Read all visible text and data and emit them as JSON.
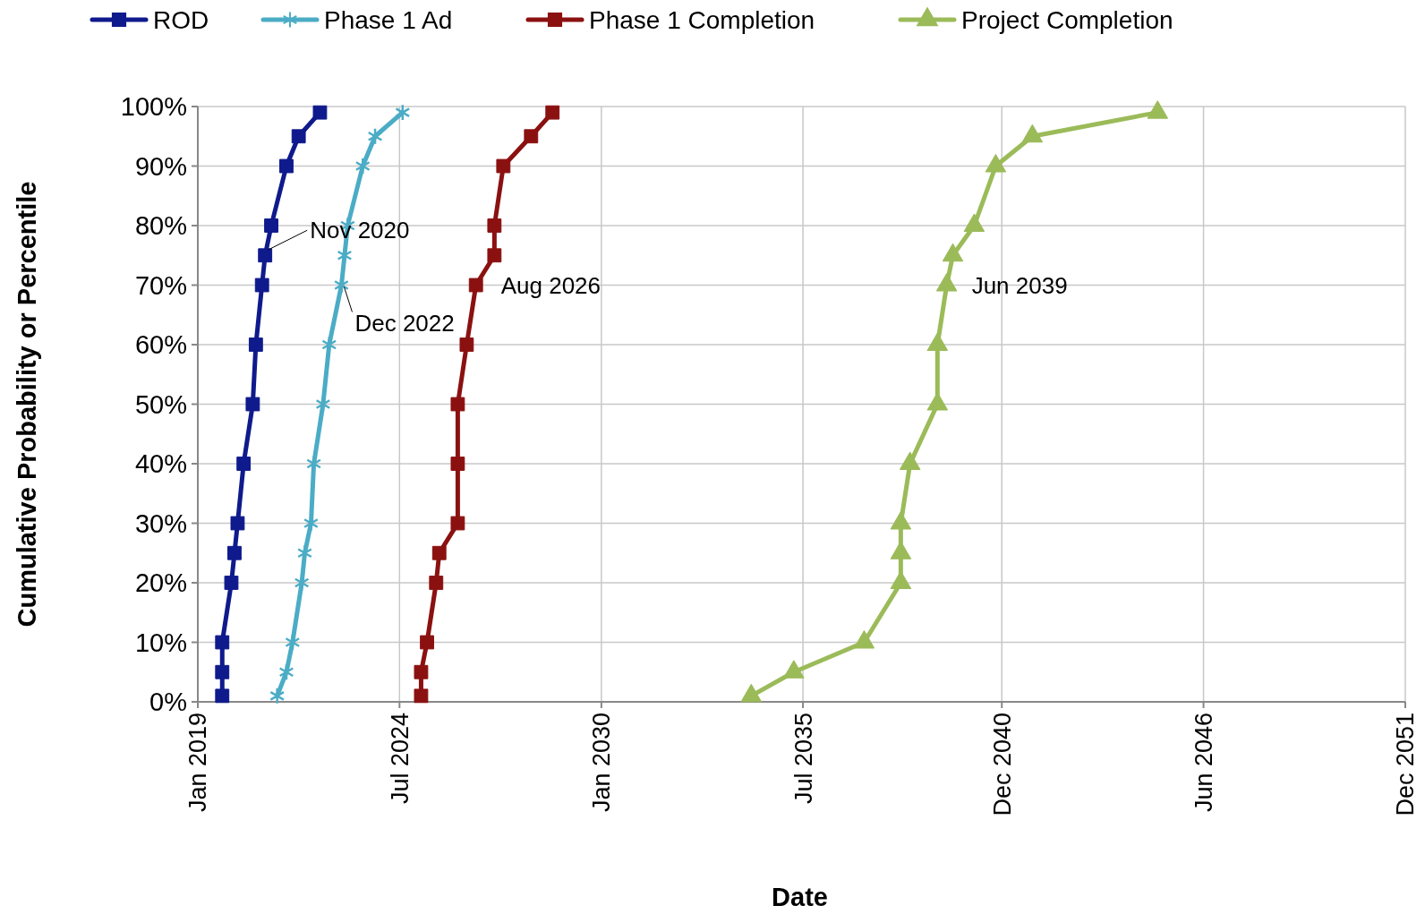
{
  "chart_data": {
    "type": "line",
    "xlabel": "Date",
    "ylabel": "Cumulative Probability or Percentile",
    "xlim": [
      "2019-01-01",
      "2051-12-01"
    ],
    "xticks": [
      {
        "value": "2019-01-01",
        "label": "Jan 2019"
      },
      {
        "value": "2024-07-01",
        "label": "Jul 2024"
      },
      {
        "value": "2030-01-01",
        "label": "Jan 2030"
      },
      {
        "value": "2035-07-01",
        "label": "Jul 2035"
      },
      {
        "value": "2040-12-01",
        "label": "Dec 2040"
      },
      {
        "value": "2046-06-01",
        "label": "Jun 2046"
      },
      {
        "value": "2051-12-01",
        "label": "Dec 2051"
      }
    ],
    "ylim": [
      0,
      100
    ],
    "yticks": [
      {
        "value": 0,
        "label": "0%"
      },
      {
        "value": 10,
        "label": "10%"
      },
      {
        "value": 20,
        "label": "20%"
      },
      {
        "value": 30,
        "label": "30%"
      },
      {
        "value": 40,
        "label": "40%"
      },
      {
        "value": 50,
        "label": "50%"
      },
      {
        "value": 60,
        "label": "60%"
      },
      {
        "value": 70,
        "label": "70%"
      },
      {
        "value": 80,
        "label": "80%"
      },
      {
        "value": 90,
        "label": "90%"
      },
      {
        "value": 100,
        "label": "100%"
      }
    ],
    "grid": true,
    "legend": "top",
    "series": [
      {
        "name": "ROD",
        "color": "#0f1a8c",
        "marker": "square",
        "x": [
          "2019-09",
          "2019-09",
          "2019-09",
          "2019-12",
          "2020-01",
          "2020-02",
          "2020-04",
          "2020-07",
          "2020-08",
          "2020-10",
          "2020-11",
          "2021-01",
          "2021-06",
          "2021-10",
          "2022-05"
        ],
        "values": [
          1,
          5,
          10,
          20,
          25,
          30,
          40,
          50,
          60,
          70,
          75,
          80,
          90,
          95,
          99
        ]
      },
      {
        "name": "Phase 1 Ad",
        "color": "#4bacc6",
        "marker": "cross",
        "x": [
          "2021-03",
          "2021-06",
          "2021-08",
          "2021-11",
          "2021-12",
          "2022-02",
          "2022-03",
          "2022-06",
          "2022-08",
          "2022-12",
          "2023-01",
          "2023-02",
          "2023-07",
          "2023-11",
          "2024-08"
        ],
        "values": [
          1,
          5,
          10,
          20,
          25,
          30,
          40,
          50,
          60,
          70,
          75,
          80,
          90,
          95,
          99
        ]
      },
      {
        "name": "Phase 1 Completion",
        "color": "#8b1111",
        "marker": "square",
        "x": [
          "2025-02",
          "2025-02",
          "2025-04",
          "2025-07",
          "2025-08",
          "2026-02",
          "2026-02",
          "2026-02",
          "2026-05",
          "2026-08",
          "2027-02",
          "2027-02",
          "2027-05",
          "2028-02",
          "2028-09"
        ],
        "values": [
          1,
          5,
          10,
          20,
          25,
          30,
          40,
          50,
          60,
          70,
          75,
          80,
          90,
          95,
          99
        ]
      },
      {
        "name": "Project Completion",
        "color": "#9bbb59",
        "marker": "triangle",
        "x": [
          "2034-02",
          "2035-04",
          "2037-03",
          "2038-03",
          "2038-03",
          "2038-03",
          "2038-06",
          "2039-03",
          "2039-03",
          "2039-06",
          "2039-08",
          "2040-03",
          "2040-10",
          "2041-10",
          "2045-03"
        ],
        "values": [
          1,
          5,
          10,
          20,
          25,
          30,
          40,
          50,
          60,
          70,
          75,
          80,
          90,
          95,
          99
        ]
      }
    ],
    "annotations": [
      {
        "text": "Nov 2020",
        "x": "2020-11",
        "y": 75
      },
      {
        "text": "Dec 2022",
        "x": "2022-12",
        "y": 70
      },
      {
        "text": "Aug 2026",
        "x": "2026-08",
        "y": 70
      },
      {
        "text": "Jun 2039",
        "x": "2039-06",
        "y": 70
      }
    ]
  }
}
